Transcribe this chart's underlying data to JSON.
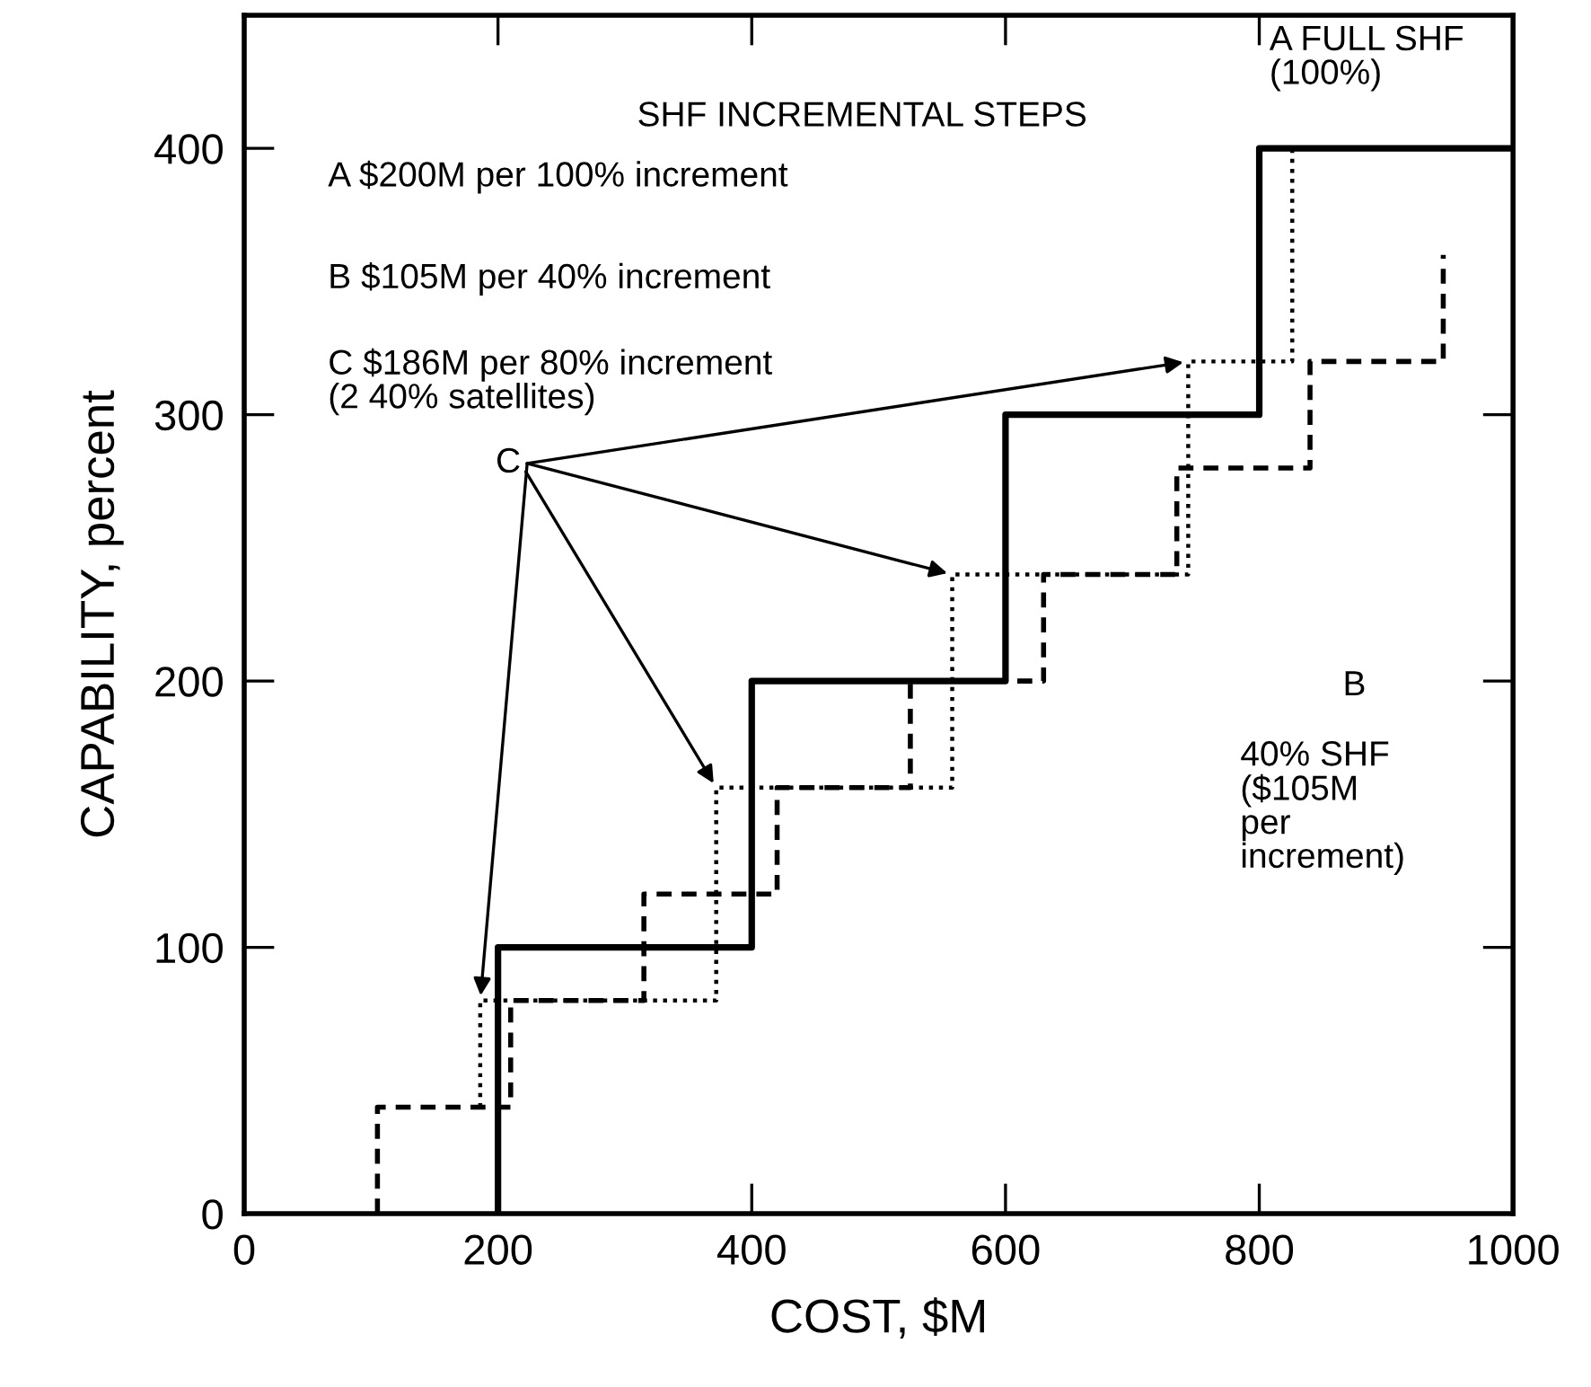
{
  "chart_data": {
    "type": "step",
    "xlabel": "COST, $M",
    "ylabel": "CAPABILITY, percent",
    "xlim": [
      0,
      1000
    ],
    "ylim": [
      0,
      450
    ],
    "xticks": [
      0,
      200,
      400,
      600,
      800,
      1000
    ],
    "yticks": [
      0,
      100,
      200,
      300,
      400
    ],
    "grid": false,
    "series": [
      {
        "color": "#000000",
        "line_style": "solid",
        "x": [
          200,
          200,
          400,
          600,
          800,
          1000
        ],
        "values": [
          0,
          100,
          200,
          300,
          400,
          400
        ]
      },
      {
        "color": "#000000",
        "line_style": "dashed",
        "x": [
          105,
          105,
          210,
          315,
          420,
          525,
          630,
          735,
          840,
          945
        ],
        "values": [
          0,
          40,
          80,
          120,
          160,
          200,
          240,
          280,
          320,
          360
        ]
      },
      {
        "color": "#000000",
        "line_style": "dotted",
        "x": [
          186,
          186,
          372,
          558,
          744,
          826
        ],
        "values": [
          40,
          80,
          160,
          240,
          320,
          400
        ]
      }
    ],
    "annotations": [
      "SHF INCREMENTAL STEPS",
      "A $200M per 100% increment",
      "B $105M per 40% increment",
      "C $186M per 80% increment\n(2 40% satellites)",
      "A FULL SHF\n(100%)",
      "B",
      "40% SHF\n($105M\nper\nincrement)",
      {
        "text": "C",
        "x": 372,
        "y": 160
      }
    ]
  }
}
